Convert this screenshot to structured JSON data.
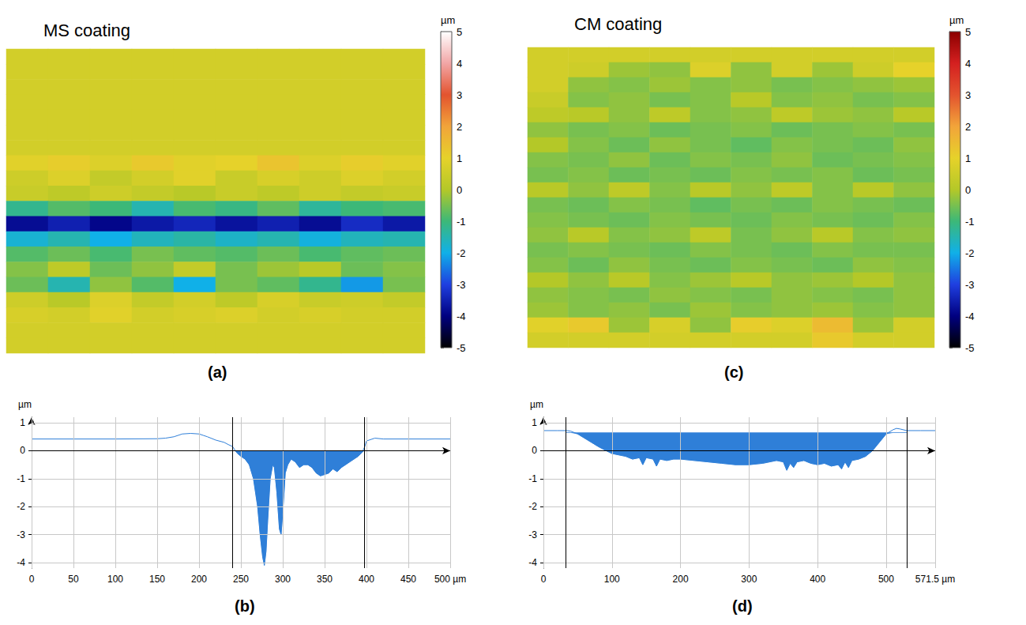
{
  "chart_data": [
    {
      "type": "heatmap",
      "title": "MS coating",
      "panel_label": "(a)",
      "colorbar_label": "µm",
      "colorbar_range": [
        -5,
        5
      ],
      "colorbar_ticks": [
        -5,
        -4,
        -3,
        -2,
        -1,
        0,
        1,
        2,
        3,
        4,
        5
      ],
      "colors": [
        "#000000",
        "#000080",
        "#1f3fe0",
        "#10b0e8",
        "#3cb878",
        "#b4c828",
        "#e6d22a",
        "#f2a43a",
        "#e3532e",
        "#f2a6a6",
        "#ffffff"
      ],
      "cells": [
        [
          0.6,
          0.6,
          0.6,
          0.6,
          0.6,
          0.6,
          0.6,
          0.6,
          0.6,
          0.6
        ],
        [
          0.6,
          0.6,
          0.6,
          0.6,
          0.6,
          0.6,
          0.6,
          0.6,
          0.6,
          0.6
        ],
        [
          0.6,
          0.6,
          0.6,
          0.6,
          0.6,
          0.6,
          0.6,
          0.6,
          0.6,
          0.6
        ],
        [
          0.6,
          0.6,
          0.6,
          0.6,
          0.6,
          0.6,
          0.6,
          0.6,
          0.6,
          0.6
        ],
        [
          0.6,
          0.6,
          0.6,
          0.6,
          0.6,
          0.6,
          0.6,
          0.6,
          0.6,
          0.6
        ],
        [
          0.6,
          0.6,
          0.6,
          0.6,
          0.6,
          0.6,
          0.6,
          0.6,
          0.6,
          0.6
        ],
        [
          0.6,
          0.6,
          0.6,
          0.6,
          0.6,
          0.6,
          0.6,
          0.6,
          0.6,
          0.6
        ],
        [
          0.9,
          1.1,
          0.8,
          1.2,
          0.9,
          1,
          1.3,
          0.8,
          1.1,
          0.9
        ],
        [
          0.5,
          0.8,
          0.3,
          0.6,
          0.9,
          0.4,
          0.7,
          0.5,
          0.8,
          0.6
        ],
        [
          0.4,
          0.2,
          0.5,
          0.3,
          0.1,
          0.4,
          0.2,
          0.5,
          0.3,
          0.4
        ],
        [
          -1.2,
          -0.8,
          -1,
          -1.5,
          -0.9,
          -1.1,
          -0.7,
          -1.3,
          -1,
          -0.9
        ],
        [
          -3.8,
          -3.5,
          -3.9,
          -3.6,
          -3.4,
          -3.7,
          -3.5,
          -3.8,
          -3.3,
          -3.6
        ],
        [
          -1.8,
          -1.5,
          -2,
          -1.6,
          -1.4,
          -1.7,
          -1.5,
          -1.9,
          -1.6,
          -1.5
        ],
        [
          -0.8,
          -0.6,
          -0.9,
          -0.5,
          -0.7,
          -0.8,
          -0.6,
          -0.9,
          -0.7,
          -0.6
        ],
        [
          -0.4,
          0.2,
          -0.6,
          -0.3,
          0.3,
          -0.5,
          -0.2,
          0.1,
          -0.6,
          -0.4
        ],
        [
          -0.6,
          -1.5,
          -0.3,
          -0.8,
          -2,
          -0.5,
          -0.7,
          -1.2,
          -2.2,
          -0.5
        ],
        [
          0.5,
          0.1,
          0.8,
          0.3,
          0.6,
          0.2,
          0.7,
          0.4,
          0.5,
          0.3
        ],
        [
          0.7,
          0.6,
          0.9,
          0.6,
          0.7,
          0.8,
          0.6,
          0.7,
          0.6,
          0.6
        ],
        [
          0.6,
          0.6,
          0.6,
          0.6,
          0.6,
          0.6,
          0.6,
          0.6,
          0.6,
          0.6
        ],
        [
          0.6,
          0.6,
          0.6,
          0.6,
          0.6,
          0.6,
          0.6,
          0.6,
          0.6,
          0.6
        ]
      ]
    },
    {
      "type": "line",
      "panel_label": "(b)",
      "y_label": "µm",
      "color": "#2f7fd8",
      "grid": true,
      "x": [
        0,
        50,
        100,
        150,
        160,
        170,
        180,
        190,
        200,
        205,
        210,
        220,
        230,
        235,
        240,
        243,
        246,
        250,
        255,
        260,
        265,
        270,
        273,
        276,
        278,
        280,
        282,
        285,
        288,
        290,
        293,
        296,
        298,
        300,
        303,
        306,
        310,
        315,
        320,
        325,
        330,
        335,
        340,
        345,
        350,
        355,
        360,
        365,
        370,
        375,
        380,
        385,
        390,
        395,
        398,
        400,
        410,
        420,
        450,
        500
      ],
      "values": [
        0.42,
        0.42,
        0.42,
        0.43,
        0.45,
        0.5,
        0.6,
        0.62,
        0.6,
        0.55,
        0.5,
        0.38,
        0.3,
        0.22,
        0.15,
        0.02,
        -0.1,
        -0.2,
        -0.3,
        -0.5,
        -1,
        -2,
        -3,
        -3.8,
        -4.1,
        -3.6,
        -2.5,
        -1,
        -0.5,
        -0.6,
        -1.5,
        -2.8,
        -3,
        -2.2,
        -0.8,
        -0.5,
        -0.3,
        -0.4,
        -0.6,
        -0.5,
        -0.5,
        -0.6,
        -0.8,
        -0.9,
        -0.85,
        -0.8,
        -0.65,
        -0.75,
        -0.6,
        -0.5,
        -0.4,
        -0.3,
        -0.2,
        -0.05,
        0.15,
        0.35,
        0.45,
        0.42,
        0.42,
        0.42
      ],
      "xlim": [
        0,
        500
      ],
      "xticks": [
        0,
        50,
        100,
        150,
        200,
        250,
        300,
        350,
        400,
        450,
        {
          "value": 500,
          "label": "500 µm"
        }
      ],
      "ylim": [
        -4.2,
        1.2
      ],
      "yticks": [
        -4,
        -3,
        -2,
        -1,
        0,
        1
      ],
      "bounds": [
        240,
        397
      ],
      "reference_line": 0,
      "fill_level": 0
    },
    {
      "type": "heatmap",
      "title": "CM coating",
      "panel_label": "(c)",
      "colorbar_label": "µm",
      "colorbar_range": [
        -5,
        5
      ],
      "colorbar_ticks": [
        -5,
        -4,
        -3,
        -2,
        -1,
        0,
        1,
        2,
        3,
        4,
        5
      ],
      "colors": [
        "#000000",
        "#000080",
        "#1f3fe0",
        "#10b0e8",
        "#3cb878",
        "#b4c828",
        "#e6d22a",
        "#f2a43a",
        "#e3532e",
        "#d42020",
        "#8b0000"
      ],
      "cells": [
        [
          0.6,
          0.6,
          0.6,
          0.6,
          0.6,
          0.6,
          0.6,
          0.6,
          0.6,
          0.6
        ],
        [
          0.6,
          0.5,
          -0.2,
          -0.3,
          0.8,
          -0.3,
          0.6,
          -0.2,
          0.5,
          1
        ],
        [
          0.6,
          -0.3,
          -0.4,
          -0.2,
          -0.4,
          -0.3,
          -0.5,
          -0.4,
          -0.3,
          -0.2
        ],
        [
          0.4,
          -0.4,
          -0.3,
          -0.5,
          -0.4,
          0.1,
          -0.4,
          -0.3,
          -0.5,
          -0.4
        ],
        [
          0.2,
          0.1,
          -0.3,
          0.2,
          -0.4,
          -0.3,
          0.2,
          -0.2,
          -0.3,
          0.1
        ],
        [
          -0.3,
          -0.5,
          -0.4,
          -0.6,
          -0.5,
          -0.4,
          -0.6,
          -0.5,
          -0.4,
          -0.5
        ],
        [
          0,
          -0.4,
          -0.6,
          -0.3,
          -0.5,
          -0.7,
          -0.4,
          -0.5,
          -0.6,
          -0.3
        ],
        [
          -0.4,
          -0.5,
          -0.3,
          -0.6,
          -0.4,
          -0.5,
          -0.3,
          -0.6,
          -0.5,
          -0.4
        ],
        [
          -0.5,
          -0.4,
          -0.6,
          -0.5,
          -0.6,
          -0.4,
          -0.5,
          -0.4,
          -0.6,
          -0.5
        ],
        [
          0.1,
          -0.3,
          0.2,
          -0.4,
          0.1,
          -0.3,
          0.2,
          -0.4,
          0.1,
          -0.3
        ],
        [
          -0.5,
          -0.6,
          -0.4,
          -0.5,
          -0.7,
          -0.5,
          -0.6,
          -0.4,
          -0.5,
          -0.6
        ],
        [
          -0.4,
          -0.5,
          -0.6,
          -0.4,
          -0.5,
          -0.6,
          -0.4,
          -0.5,
          -0.6,
          -0.4
        ],
        [
          -0.3,
          0.1,
          -0.4,
          -0.3,
          0.2,
          -0.5,
          -0.3,
          0.1,
          -0.4,
          -0.3
        ],
        [
          -0.5,
          -0.4,
          -0.5,
          -0.6,
          -0.4,
          -0.5,
          -0.6,
          -0.4,
          -0.5,
          -0.5
        ],
        [
          -0.4,
          -0.6,
          -0.3,
          -0.5,
          -0.6,
          -0.4,
          -0.5,
          -0.6,
          -0.3,
          -0.4
        ],
        [
          0,
          -0.3,
          0.1,
          -0.4,
          -0.2,
          0.1,
          -0.3,
          -0.2,
          0,
          -0.3
        ],
        [
          -0.3,
          -0.4,
          -0.5,
          -0.3,
          -0.4,
          -0.5,
          -0.3,
          -0.4,
          -0.5,
          -0.3
        ],
        [
          -0.2,
          -0.4,
          -0.3,
          -0.5,
          -0.2,
          -0.4,
          -0.3,
          -0.2,
          -0.4,
          -0.3
        ],
        [
          0.9,
          1.2,
          -0.2,
          0.7,
          -0.3,
          1.1,
          0.8,
          1.5,
          -0.2,
          0.6
        ],
        [
          0.6,
          0.6,
          0.6,
          0.6,
          0.6,
          0.6,
          0.6,
          1.2,
          0.6,
          0.6
        ]
      ]
    },
    {
      "type": "line",
      "panel_label": "(d)",
      "y_label": "µm",
      "color": "#2f7fd8",
      "grid": true,
      "x": [
        0,
        20,
        35,
        40,
        50,
        60,
        70,
        80,
        90,
        100,
        110,
        120,
        130,
        140,
        145,
        150,
        160,
        165,
        170,
        180,
        190,
        200,
        220,
        240,
        260,
        280,
        300,
        320,
        340,
        350,
        355,
        360,
        365,
        370,
        380,
        390,
        400,
        410,
        420,
        430,
        435,
        440,
        445,
        450,
        460,
        470,
        480,
        490,
        500,
        510,
        515,
        520,
        530,
        550,
        571.5
      ],
      "values": [
        0.72,
        0.72,
        0.72,
        0.7,
        0.6,
        0.45,
        0.3,
        0.15,
        0.02,
        -0.1,
        -0.15,
        -0.2,
        -0.3,
        -0.25,
        -0.5,
        -0.25,
        -0.3,
        -0.55,
        -0.3,
        -0.35,
        -0.3,
        -0.3,
        -0.35,
        -0.4,
        -0.45,
        -0.5,
        -0.5,
        -0.45,
        -0.35,
        -0.4,
        -0.7,
        -0.45,
        -0.6,
        -0.4,
        -0.35,
        -0.45,
        -0.5,
        -0.45,
        -0.55,
        -0.5,
        -0.65,
        -0.4,
        -0.6,
        -0.35,
        -0.3,
        -0.2,
        0,
        0.3,
        0.6,
        0.75,
        0.8,
        0.78,
        0.72,
        0.72,
        0.72
      ],
      "xlim": [
        0,
        571.5
      ],
      "xticks": [
        0,
        100,
        200,
        300,
        400,
        500,
        {
          "value": 571.5,
          "label": "571.5 µm"
        }
      ],
      "ylim": [
        -4.2,
        1.2
      ],
      "yticks": [
        -4,
        -3,
        -2,
        -1,
        0,
        1
      ],
      "bounds": [
        33,
        530
      ],
      "reference_line": 0,
      "fill_level": 0.65
    }
  ]
}
